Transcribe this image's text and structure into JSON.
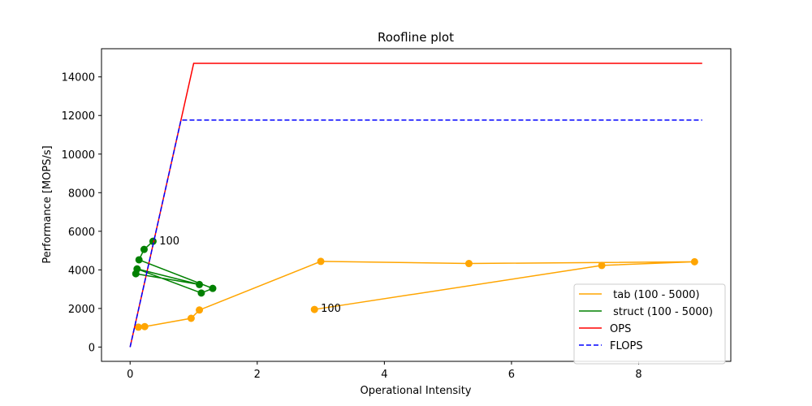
{
  "chart_data": {
    "type": "line",
    "title": "Roofline plot",
    "xlabel": "Operational Intensity",
    "ylabel": "Performance [MOPS/s]",
    "xlim": [
      -0.45,
      9.45
    ],
    "ylim": [
      -740,
      15460
    ],
    "xticks": [
      0,
      2,
      4,
      6,
      8
    ],
    "yticks": [
      0,
      2000,
      4000,
      6000,
      8000,
      10000,
      12000,
      14000
    ],
    "grid": false,
    "legend_position": "lower-right",
    "series": [
      {
        "name": " tab (100 - 5000)",
        "color": "#ffa500",
        "style": "solid",
        "markers": true,
        "points": [
          [
            2.9,
            1950
          ],
          [
            7.42,
            4230
          ],
          [
            8.88,
            4420
          ],
          [
            5.33,
            4330
          ],
          [
            3.0,
            4440
          ],
          [
            1.09,
            1920
          ],
          [
            0.96,
            1490
          ],
          [
            0.23,
            1060
          ],
          [
            0.13,
            1030
          ]
        ]
      },
      {
        "name": " struct (100 - 5000)",
        "color": "#008000",
        "style": "solid",
        "markers": true,
        "points": [
          [
            0.36,
            5480
          ],
          [
            0.22,
            5060
          ],
          [
            0.14,
            4520
          ],
          [
            1.3,
            3040
          ],
          [
            1.12,
            2800
          ],
          [
            0.11,
            4050
          ],
          [
            1.09,
            3240
          ],
          [
            0.09,
            3800
          ]
        ]
      },
      {
        "name": "OPS",
        "color": "#ff0000",
        "style": "solid",
        "markers": false,
        "points": [
          [
            0,
            0
          ],
          [
            1.0,
            14700
          ],
          [
            9.0,
            14700
          ]
        ]
      },
      {
        "name": "FLOPS",
        "color": "#0000ff",
        "style": "dashed",
        "markers": false,
        "points": [
          [
            0,
            0
          ],
          [
            0.8,
            11760
          ],
          [
            9.0,
            11760
          ]
        ]
      }
    ],
    "annotations": [
      {
        "text": "100",
        "x": 0.46,
        "y": 5480
      },
      {
        "text": "100",
        "x": 3.0,
        "y": 2000
      }
    ]
  }
}
